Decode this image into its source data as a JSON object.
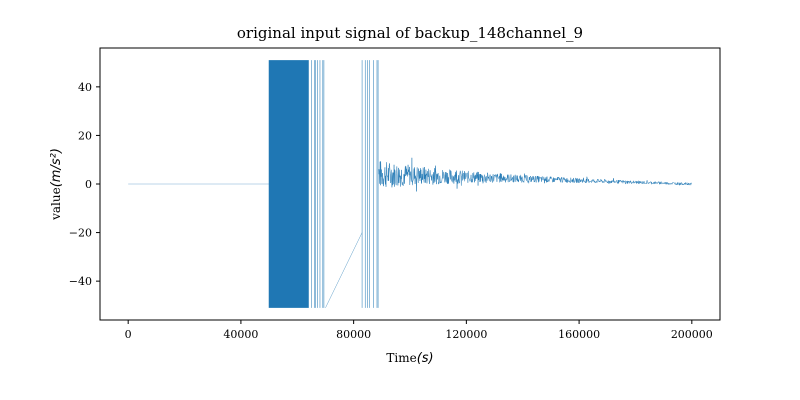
{
  "chart_data": {
    "type": "line",
    "title": "original input signal of backup_148channel_9",
    "xlabel": "Time",
    "xlabel_unit": "(s)",
    "ylabel": "value",
    "ylabel_unit": "(m/s²)",
    "xlim": [
      -10000,
      210000
    ],
    "ylim": [
      -56,
      56
    ],
    "grid": false,
    "x_ticks": [
      0,
      40000,
      80000,
      120000,
      160000,
      200000
    ],
    "y_ticks": [
      -40,
      -20,
      0,
      20,
      40
    ],
    "series": [
      {
        "color": "#1f77b4",
        "segments": [
          {
            "kind": "flat",
            "x": [
              0,
              50000
            ],
            "y": [
              0,
              0
            ]
          },
          {
            "kind": "clipped_saturation",
            "x": [
              50000,
              64000
            ],
            "ymin": -51,
            "ymax": 51,
            "density": "dense"
          },
          {
            "kind": "clipped_saturation",
            "x": [
              64000,
              70000
            ],
            "ymin": -51,
            "ymax": 51,
            "density": "sparse"
          },
          {
            "kind": "ramp",
            "x": [
              70000,
              83000
            ],
            "y": [
              -51,
              -20
            ]
          },
          {
            "kind": "clipped_saturation",
            "x": [
              83000,
              89000
            ],
            "ymin": -51,
            "ymax": 51,
            "density": "sparse"
          },
          {
            "kind": "decaying_vibration",
            "x": [
              89000,
              200000
            ],
            "peak_envelope": 12,
            "center": 4,
            "end_envelope": 0.5
          }
        ]
      }
    ]
  }
}
